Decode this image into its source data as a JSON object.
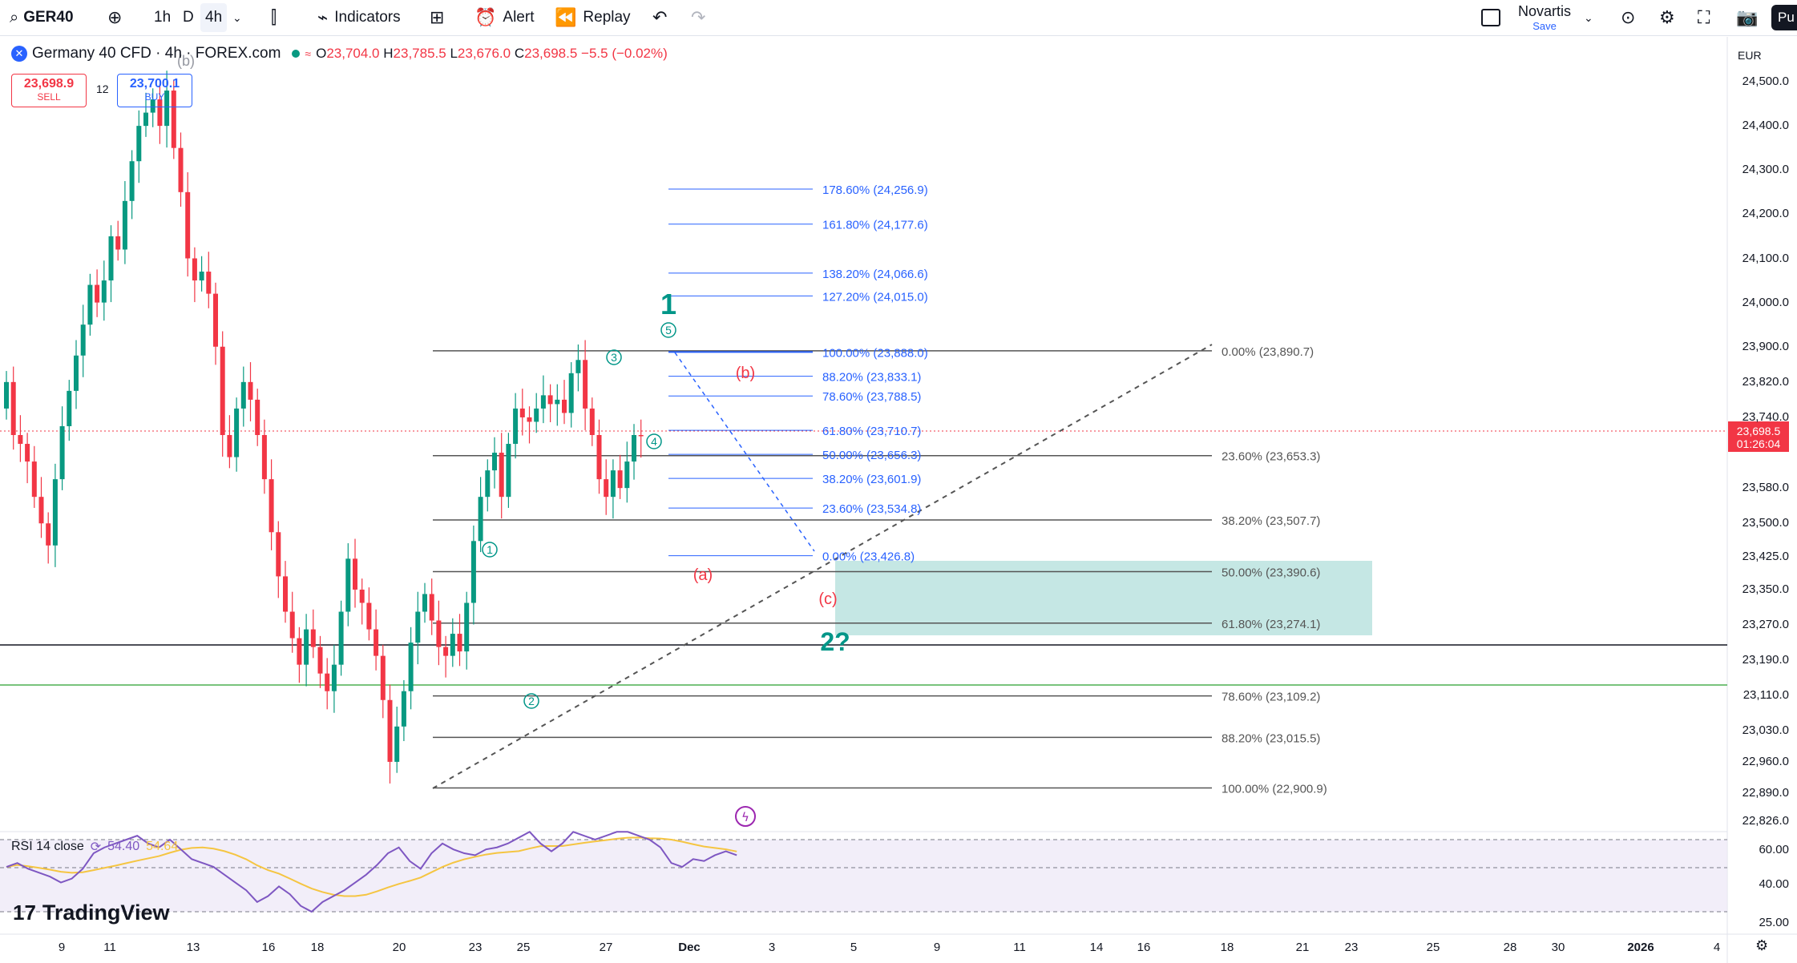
{
  "toolbar": {
    "symbol": "GER40",
    "intervals": [
      "1h",
      "D",
      "4h"
    ],
    "indicators_label": "Indicators",
    "alert_label": "Alert",
    "replay_label": "Replay",
    "layout_name": "Novartis",
    "layout_sub": "Save",
    "publish_label": "Pu"
  },
  "legend": {
    "title": "Germany 40 CFD · 4h · FOREX.com",
    "open_label": "O",
    "open": "23,704.0",
    "high_label": "H",
    "high": "23,785.5",
    "low_label": "L",
    "low": "23,676.0",
    "close_label": "C",
    "close": "23,698.5",
    "change": "−5.5 (−0.02%)",
    "sell_price": "23,698.9",
    "sell_label": "SELL",
    "spread": "12",
    "buy_price": "23,700.1",
    "buy_label": "BUY"
  },
  "price_axis": {
    "currency": "EUR",
    "labels": [
      "24,500.0",
      "24,400.0",
      "24,300.0",
      "24,200.0",
      "24,100.0",
      "24,000.0",
      "23,900.0",
      "23,820.0",
      "23,740.0",
      "23,580.0",
      "23,500.0",
      "23,425.0",
      "23,350.0",
      "23,270.0",
      "23,190.0",
      "23,110.0",
      "23,030.0",
      "22,960.0",
      "22,890.0",
      "22,826.0"
    ],
    "current_price": "23,698.5",
    "countdown": "01:26:04",
    "rsi_labels": [
      "60.00",
      "40.00",
      "25.00"
    ]
  },
  "time_axis": {
    "labels": [
      "9",
      "11",
      "13",
      "16",
      "18",
      "20",
      "23",
      "25",
      "27",
      "Dec",
      "3",
      "5",
      "9",
      "11",
      "14",
      "16",
      "18",
      "21",
      "23",
      "25",
      "28",
      "30",
      "2026",
      "4"
    ]
  },
  "fib_extension": {
    "levels": [
      "178.60% (24,256.9)",
      "161.80% (24,177.6)",
      "138.20% (24,066.6)",
      "127.20% (24,015.0)",
      "100.00% (23,888.0)",
      "88.20% (23,833.1)",
      "78.60% (23,788.5)",
      "61.80% (23,710.7)",
      "50.00% (23,656.3)",
      "38.20% (23,601.9)",
      "23.60% (23,534.8)",
      "0.00% (23,426.8)"
    ]
  },
  "fib_retracement": {
    "levels": [
      "0.00% (23,890.7)",
      "23.60% (23,653.3)",
      "38.20% (23,507.7)",
      "50.00% (23,390.6)",
      "61.80% (23,274.1)",
      "78.60% (23,109.2)",
      "88.20% (23,015.5)",
      "100.00% (22,900.9)"
    ]
  },
  "wave_labels": {
    "w1": "1",
    "w2": "2?",
    "a": "(a)",
    "b": "(b)",
    "c": "(c)",
    "sub_b_top": "(b)",
    "c1": "1",
    "c2": "2",
    "c3": "3",
    "c4": "4",
    "c5": "5"
  },
  "rsi": {
    "label": "RSI 14 close",
    "value": "54.40",
    "ma_value": "54.64"
  },
  "branding": {
    "name": "TradingView"
  },
  "colors": {
    "up": "#089981",
    "down": "#f23645",
    "fib_blue": "#2962ff",
    "zone": "#b2dfdb"
  }
}
